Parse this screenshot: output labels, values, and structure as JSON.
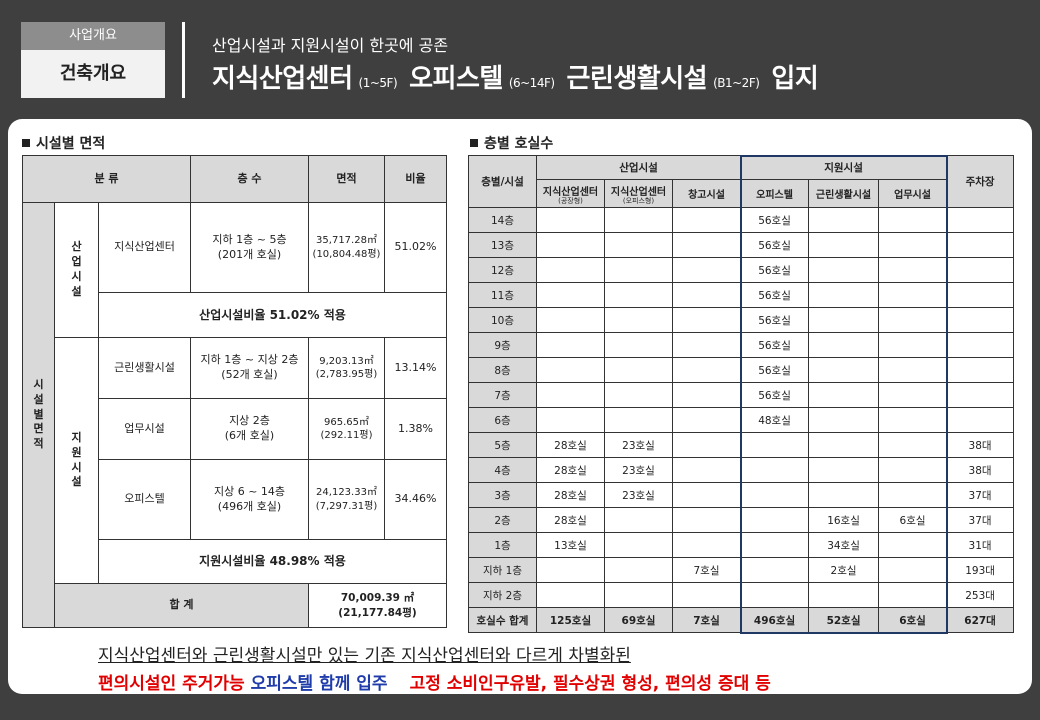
{
  "header": {
    "category": "사업개요",
    "subcategory": "건축개요",
    "tagline": "산업시설과 지원시설이 한곳에 공존",
    "title_part1": "지식산업센터",
    "title_part1_range": "(1~5F)",
    "title_part2": "오피스텔",
    "title_part2_range": "(6~14F)",
    "title_part3": "근린생활시설",
    "title_part3_range": "(B1~2F)",
    "title_part4": "입지"
  },
  "area_section": {
    "title": "시설별 면적",
    "headers": {
      "category": "분 류",
      "floors": "층 수",
      "area": "면적",
      "ratio": "비율"
    },
    "outer_group": "시\n설\n별\n면\n적",
    "industrial_group": "산\n업\n시\n설",
    "support_group": "지\n원\n시\n설",
    "rows": [
      {
        "name": "지식산업센터",
        "floors": "지하 1층 ~ 5층\n(201개 호실)",
        "area": "35,717.28㎡\n(10,804.48평)",
        "ratio": "51.02%"
      },
      {
        "name": "근린생활시설",
        "floors": "지하 1층 ~ 지상 2층\n(52개 호실)",
        "area": "9,203.13㎡\n(2,783.95평)",
        "ratio": "13.14%"
      },
      {
        "name": "업무시설",
        "floors": "지상 2층\n(6개 호실)",
        "area": "965.65㎡\n(292.11평)",
        "ratio": "1.38%"
      },
      {
        "name": "오피스텔",
        "floors": "지상 6 ~ 14층\n(496개 호실)",
        "area": "24,123.33㎡\n(7,297.31평)",
        "ratio": "34.46%"
      }
    ],
    "industrial_ratio": "산업시설비율 51.02% 적용",
    "support_ratio": "지원시설비율 48.98% 적용",
    "total_label": "합  계",
    "total_value": "70,009.39 ㎡ (21,177.84평)"
  },
  "floor_section": {
    "title": "층별 호실수",
    "group_industrial": "산업시설",
    "group_support": "지원시설",
    "col_floor": "층별/시설",
    "col_kic_factory": "지식산업센터",
    "col_kic_factory_sub": "(공장형)",
    "col_kic_office": "지식산업센터",
    "col_kic_office_sub": "(오피스형)",
    "col_warehouse": "창고시설",
    "col_officetel": "오피스텔",
    "col_neighborhood": "근린생활시설",
    "col_business": "업무시설",
    "col_parking": "주차장",
    "rows": [
      [
        "14층",
        "",
        "",
        "",
        "56호실",
        "",
        "",
        ""
      ],
      [
        "13층",
        "",
        "",
        "",
        "56호실",
        "",
        "",
        ""
      ],
      [
        "12층",
        "",
        "",
        "",
        "56호실",
        "",
        "",
        ""
      ],
      [
        "11층",
        "",
        "",
        "",
        "56호실",
        "",
        "",
        ""
      ],
      [
        "10층",
        "",
        "",
        "",
        "56호실",
        "",
        "",
        ""
      ],
      [
        "9층",
        "",
        "",
        "",
        "56호실",
        "",
        "",
        ""
      ],
      [
        "8층",
        "",
        "",
        "",
        "56호실",
        "",
        "",
        ""
      ],
      [
        "7층",
        "",
        "",
        "",
        "56호실",
        "",
        "",
        ""
      ],
      [
        "6층",
        "",
        "",
        "",
        "48호실",
        "",
        "",
        ""
      ],
      [
        "5층",
        "28호실",
        "23호실",
        "",
        "",
        "",
        "",
        "38대"
      ],
      [
        "4층",
        "28호실",
        "23호실",
        "",
        "",
        "",
        "",
        "38대"
      ],
      [
        "3층",
        "28호실",
        "23호실",
        "",
        "",
        "",
        "",
        "37대"
      ],
      [
        "2층",
        "28호실",
        "",
        "",
        "",
        "16호실",
        "6호실",
        "37대"
      ],
      [
        "1층",
        "13호실",
        "",
        "",
        "",
        "34호실",
        "",
        "31대"
      ],
      [
        "지하 1층",
        "",
        "",
        "7호실",
        "",
        "2호실",
        "",
        "193대"
      ],
      [
        "지하 2층",
        "",
        "",
        "",
        "",
        "",
        "",
        "253대"
      ]
    ],
    "total_row": [
      "호실수 합계",
      "125호실",
      "69호실",
      "7호실",
      "496호실",
      "52호실",
      "6호실",
      "627대"
    ]
  },
  "bottom": {
    "line1": "지식산업센터와 근린생활시설만 있는 기존 지식산업센터와 다르게 차별화된",
    "line2_red1": "편의시설인 주거가능 ",
    "line2_blue": "오피스텔 함께 입주",
    "line2_red2": "고정 소비인구유발, 필수상권 형성, 편의성 증대 등"
  },
  "colors": {
    "background": "#3f3f3f",
    "highlight_red": "#e00000",
    "highlight_blue": "#1f3caa",
    "support_box": "#1f3864",
    "header_gray": "#d9d9d9"
  }
}
